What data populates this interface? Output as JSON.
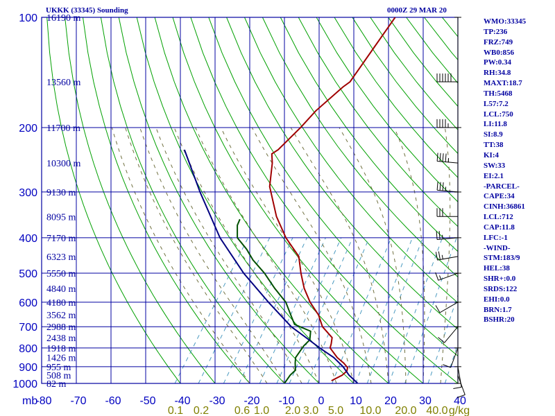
{
  "title_left": "UKKK (33345) Sounding",
  "title_right": "0000Z 29 MAR 20",
  "indices": [
    "WMO:33345",
    "TP:236",
    "FRZ:749",
    "WB0:856",
    "PW:0.34",
    "RH:34.8",
    "MAXT:18.7",
    "TH:5468",
    "L57:7.2",
    "LCL:750",
    "LI:11.8",
    "SI:8.9",
    "TT:38",
    "KI:4",
    "SW:33",
    "EI:2.1",
    "-PARCEL-",
    "CAPE:34",
    "CINH:36861",
    "LCL:712",
    "CAP:11.8",
    "LFC:-1",
    "-WIND-",
    "STM:183/9",
    "HEL:38",
    "SHR+:0.0",
    "SRDS:122",
    "EHI:0.0",
    "BRN:1.7",
    "BSHR:20"
  ],
  "chart_data": {
    "type": "line",
    "title": "UKKK (33345) Sounding",
    "subtitle": "0000Z 29 MAR 20",
    "xlabel": "",
    "ylabel": "mb",
    "xlim": [
      -80,
      40
    ],
    "ylim": [
      1000,
      100
    ],
    "pressure_ticks": [
      100,
      200,
      300,
      400,
      500,
      600,
      700,
      800,
      900,
      1000
    ],
    "pressure_labels": [
      "100",
      "200",
      "300",
      "400",
      "500",
      "600",
      "700",
      "800",
      "900",
      "1000"
    ],
    "temperature_ticks": [
      -80,
      -70,
      -60,
      -50,
      -40,
      -30,
      -20,
      -10,
      0,
      10,
      20,
      30,
      40
    ],
    "temperature_labels": [
      "-80",
      "-70",
      "-60",
      "-50",
      "-40",
      "-30",
      "-20",
      "-10",
      "0",
      "10",
      "20",
      "30",
      "40"
    ],
    "mixing_ratio_labels": [
      "0.1",
      "0.2",
      "0.6",
      "1.0",
      "2.0",
      "3.0",
      "5.0",
      "10.0",
      "20.0",
      "40.0",
      "g/kg"
    ],
    "height_labels": [
      {
        "p": 100,
        "label": "16190 m"
      },
      {
        "p": 150,
        "label": "13560 m"
      },
      {
        "p": 200,
        "label": "11700 m"
      },
      {
        "p": 250,
        "label": "10300 m"
      },
      {
        "p": 300,
        "label": "9130 m"
      },
      {
        "p": 350,
        "label": "8095 m"
      },
      {
        "p": 400,
        "label": "7170 m"
      },
      {
        "p": 450,
        "label": "6323 m"
      },
      {
        "p": 500,
        "label": "5550 m"
      },
      {
        "p": 550,
        "label": "4840 m"
      },
      {
        "p": 600,
        "label": "4180 m"
      },
      {
        "p": 650,
        "label": "3562 m"
      },
      {
        "p": 700,
        "label": "2988 m"
      },
      {
        "p": 750,
        "label": "2438 m"
      },
      {
        "p": 800,
        "label": "1918 m"
      },
      {
        "p": 850,
        "label": "1426 m"
      },
      {
        "p": 900,
        "label": "955 m"
      },
      {
        "p": 950,
        "label": "508 m"
      },
      {
        "p": 1000,
        "label": "82 m"
      }
    ],
    "series": [
      {
        "name": "temperature",
        "color": "#a00000",
        "points": [
          [
            100,
            -52
          ],
          [
            150,
            -52
          ],
          [
            155,
            -53
          ],
          [
            180,
            -56
          ],
          [
            200,
            -57
          ],
          [
            230,
            -59
          ],
          [
            236,
            -60
          ],
          [
            250,
            -58
          ],
          [
            290,
            -54
          ],
          [
            350,
            -46
          ],
          [
            400,
            -39
          ],
          [
            450,
            -31.5
          ],
          [
            500,
            -27.5
          ],
          [
            550,
            -23.5
          ],
          [
            600,
            -19
          ],
          [
            650,
            -14
          ],
          [
            700,
            -10.5
          ],
          [
            750,
            -5.5
          ],
          [
            780,
            -4.5
          ],
          [
            800,
            -4
          ],
          [
            850,
            0
          ],
          [
            880,
            3
          ],
          [
            905,
            5
          ],
          [
            925,
            5.5
          ],
          [
            950,
            5
          ],
          [
            983,
            3
          ]
        ]
      },
      {
        "name": "dewpoint",
        "color": "#005000",
        "points": [
          [
            356,
            -56
          ],
          [
            370,
            -55.5
          ],
          [
            400,
            -53
          ],
          [
            430,
            -48
          ],
          [
            460,
            -44
          ],
          [
            500,
            -38
          ],
          [
            550,
            -32
          ],
          [
            600,
            -26
          ],
          [
            650,
            -22
          ],
          [
            690,
            -19
          ],
          [
            720,
            -13
          ],
          [
            760,
            -11.5
          ],
          [
            790,
            -12
          ],
          [
            850,
            -12
          ],
          [
            880,
            -11
          ],
          [
            920,
            -9.5
          ],
          [
            950,
            -10
          ],
          [
            1000,
            -10
          ]
        ]
      },
      {
        "name": "parcel",
        "color": "#000080",
        "points": [
          [
            230,
            -86
          ],
          [
            300,
            -73
          ],
          [
            400,
            -58
          ],
          [
            500,
            -44
          ],
          [
            600,
            -31
          ],
          [
            700,
            -19.5
          ],
          [
            750,
            -13
          ],
          [
            800,
            -7
          ],
          [
            850,
            -1
          ],
          [
            900,
            3.5
          ],
          [
            950,
            7
          ],
          [
            998,
            11
          ]
        ]
      }
    ],
    "wind_barbs": [
      {
        "p": 150,
        "dir": 270,
        "speed": 60
      },
      {
        "p": 200,
        "dir": 270,
        "speed": 45
      },
      {
        "p": 250,
        "dir": 275,
        "speed": 45
      },
      {
        "p": 300,
        "dir": 275,
        "speed": 35
      },
      {
        "p": 350,
        "dir": 270,
        "speed": 30
      },
      {
        "p": 400,
        "dir": 265,
        "speed": 25
      },
      {
        "p": 450,
        "dir": 260,
        "speed": 25
      },
      {
        "p": 500,
        "dir": 250,
        "speed": 15
      },
      {
        "p": 600,
        "dir": 240,
        "speed": 10
      },
      {
        "p": 700,
        "dir": 220,
        "speed": 10
      },
      {
        "p": 800,
        "dir": 200,
        "speed": 10
      },
      {
        "p": 900,
        "dir": 170,
        "speed": 10
      },
      {
        "p": 950,
        "dir": 160,
        "speed": 10
      }
    ],
    "grid": true
  }
}
